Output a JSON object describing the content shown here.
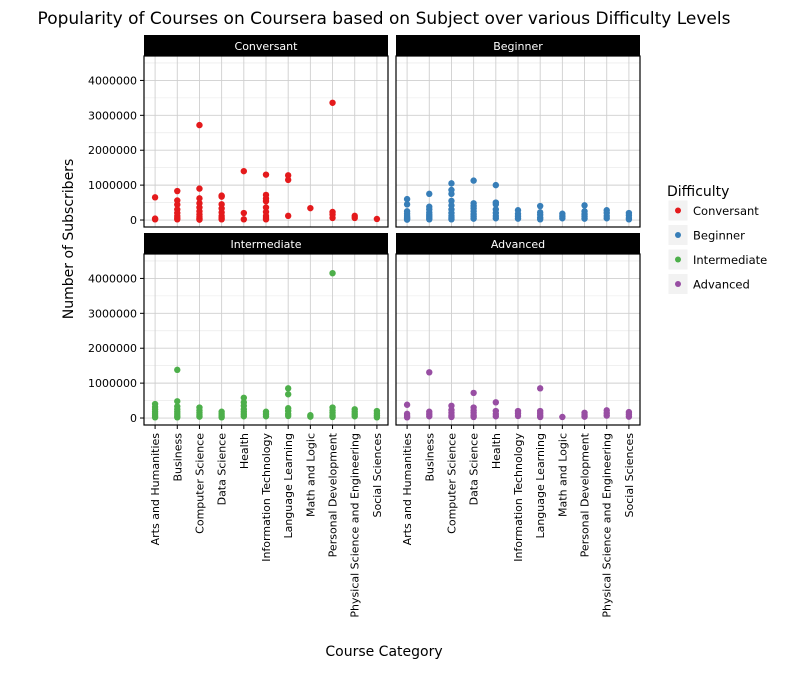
{
  "chart_data": {
    "type": "scatter",
    "title": "Popularity of Courses on Coursera based on Subject over various Difficulty Levels",
    "xlabel": "Course Category",
    "ylabel": "Number of Subscribers",
    "ylim": [
      -200000,
      4700000
    ],
    "yticks": [
      0,
      1000000,
      2000000,
      3000000,
      4000000
    ],
    "ytick_labels": [
      "0",
      "1000000",
      "2000000",
      "3000000",
      "4000000"
    ],
    "grid": true,
    "legend": {
      "title": "Difficulty",
      "placement": "right",
      "entries": [
        {
          "label": "Conversant",
          "color": "#e41a1c"
        },
        {
          "label": "Beginner",
          "color": "#377eb8"
        },
        {
          "label": "Intermediate",
          "color": "#4daf4a"
        },
        {
          "label": "Advanced",
          "color": "#984ea3"
        }
      ]
    },
    "categories": [
      "Arts and Humanities",
      "Business",
      "Computer Science",
      "Data Science",
      "Health",
      "Information Technology",
      "Language Learning",
      "Math and Logic",
      "Personal Development",
      "Physical Science and Engineering",
      "Social Sciences"
    ],
    "panels": [
      {
        "name": "Conversant",
        "color": "#e41a1c",
        "points": [
          [
            0,
            650000
          ],
          [
            0,
            40000
          ],
          [
            0,
            20000
          ],
          [
            1,
            830000
          ],
          [
            1,
            560000
          ],
          [
            1,
            440000
          ],
          [
            1,
            300000
          ],
          [
            1,
            200000
          ],
          [
            1,
            120000
          ],
          [
            1,
            60000
          ],
          [
            1,
            20000
          ],
          [
            2,
            2720000
          ],
          [
            2,
            900000
          ],
          [
            2,
            620000
          ],
          [
            2,
            480000
          ],
          [
            2,
            360000
          ],
          [
            2,
            250000
          ],
          [
            2,
            160000
          ],
          [
            2,
            90000
          ],
          [
            2,
            40000
          ],
          [
            2,
            10000
          ],
          [
            3,
            700000
          ],
          [
            3,
            670000
          ],
          [
            3,
            450000
          ],
          [
            3,
            330000
          ],
          [
            3,
            220000
          ],
          [
            3,
            120000
          ],
          [
            3,
            60000
          ],
          [
            3,
            20000
          ],
          [
            4,
            1400000
          ],
          [
            4,
            200000
          ],
          [
            4,
            20000
          ],
          [
            5,
            1300000
          ],
          [
            5,
            720000
          ],
          [
            5,
            620000
          ],
          [
            5,
            540000
          ],
          [
            5,
            360000
          ],
          [
            5,
            230000
          ],
          [
            5,
            120000
          ],
          [
            5,
            60000
          ],
          [
            5,
            20000
          ],
          [
            6,
            1280000
          ],
          [
            6,
            1150000
          ],
          [
            6,
            120000
          ],
          [
            7,
            340000
          ],
          [
            8,
            3360000
          ],
          [
            8,
            230000
          ],
          [
            8,
            160000
          ],
          [
            8,
            60000
          ],
          [
            9,
            120000
          ],
          [
            9,
            60000
          ],
          [
            10,
            30000
          ]
        ]
      },
      {
        "name": "Beginner",
        "color": "#377eb8",
        "points": [
          [
            0,
            600000
          ],
          [
            0,
            450000
          ],
          [
            0,
            250000
          ],
          [
            0,
            180000
          ],
          [
            0,
            120000
          ],
          [
            0,
            80000
          ],
          [
            0,
            40000
          ],
          [
            0,
            10000
          ],
          [
            1,
            750000
          ],
          [
            1,
            380000
          ],
          [
            1,
            300000
          ],
          [
            1,
            220000
          ],
          [
            1,
            160000
          ],
          [
            1,
            110000
          ],
          [
            1,
            60000
          ],
          [
            1,
            20000
          ],
          [
            2,
            1050000
          ],
          [
            2,
            860000
          ],
          [
            2,
            750000
          ],
          [
            2,
            550000
          ],
          [
            2,
            420000
          ],
          [
            2,
            300000
          ],
          [
            2,
            200000
          ],
          [
            2,
            120000
          ],
          [
            2,
            60000
          ],
          [
            2,
            20000
          ],
          [
            3,
            1130000
          ],
          [
            3,
            480000
          ],
          [
            3,
            400000
          ],
          [
            3,
            330000
          ],
          [
            3,
            250000
          ],
          [
            3,
            170000
          ],
          [
            3,
            100000
          ],
          [
            3,
            40000
          ],
          [
            4,
            1000000
          ],
          [
            4,
            500000
          ],
          [
            4,
            450000
          ],
          [
            4,
            300000
          ],
          [
            4,
            200000
          ],
          [
            4,
            120000
          ],
          [
            4,
            50000
          ],
          [
            5,
            280000
          ],
          [
            5,
            180000
          ],
          [
            5,
            100000
          ],
          [
            5,
            40000
          ],
          [
            6,
            400000
          ],
          [
            6,
            220000
          ],
          [
            6,
            150000
          ],
          [
            6,
            70000
          ],
          [
            6,
            20000
          ],
          [
            7,
            180000
          ],
          [
            7,
            110000
          ],
          [
            7,
            50000
          ],
          [
            8,
            420000
          ],
          [
            8,
            250000
          ],
          [
            8,
            170000
          ],
          [
            8,
            100000
          ],
          [
            8,
            40000
          ],
          [
            9,
            280000
          ],
          [
            9,
            200000
          ],
          [
            9,
            120000
          ],
          [
            9,
            50000
          ],
          [
            10,
            200000
          ],
          [
            10,
            130000
          ],
          [
            10,
            60000
          ],
          [
            10,
            20000
          ]
        ]
      },
      {
        "name": "Intermediate",
        "color": "#4daf4a",
        "points": [
          [
            0,
            400000
          ],
          [
            0,
            320000
          ],
          [
            0,
            250000
          ],
          [
            0,
            180000
          ],
          [
            0,
            120000
          ],
          [
            0,
            60000
          ],
          [
            0,
            20000
          ],
          [
            1,
            1380000
          ],
          [
            1,
            480000
          ],
          [
            1,
            330000
          ],
          [
            1,
            250000
          ],
          [
            1,
            180000
          ],
          [
            1,
            120000
          ],
          [
            1,
            60000
          ],
          [
            1,
            20000
          ],
          [
            2,
            300000
          ],
          [
            2,
            220000
          ],
          [
            2,
            150000
          ],
          [
            2,
            90000
          ],
          [
            2,
            40000
          ],
          [
            3,
            180000
          ],
          [
            3,
            120000
          ],
          [
            3,
            60000
          ],
          [
            3,
            20000
          ],
          [
            4,
            580000
          ],
          [
            4,
            450000
          ],
          [
            4,
            350000
          ],
          [
            4,
            250000
          ],
          [
            4,
            180000
          ],
          [
            4,
            110000
          ],
          [
            4,
            50000
          ],
          [
            5,
            180000
          ],
          [
            5,
            110000
          ],
          [
            5,
            50000
          ],
          [
            6,
            850000
          ],
          [
            6,
            680000
          ],
          [
            6,
            280000
          ],
          [
            6,
            200000
          ],
          [
            6,
            120000
          ],
          [
            6,
            60000
          ],
          [
            7,
            80000
          ],
          [
            7,
            40000
          ],
          [
            8,
            4150000
          ],
          [
            8,
            300000
          ],
          [
            8,
            220000
          ],
          [
            8,
            150000
          ],
          [
            8,
            80000
          ],
          [
            8,
            30000
          ],
          [
            9,
            250000
          ],
          [
            9,
            180000
          ],
          [
            9,
            110000
          ],
          [
            9,
            50000
          ],
          [
            10,
            200000
          ],
          [
            10,
            130000
          ],
          [
            10,
            70000
          ],
          [
            10,
            20000
          ]
        ]
      },
      {
        "name": "Advanced",
        "color": "#984ea3",
        "points": [
          [
            0,
            380000
          ],
          [
            0,
            120000
          ],
          [
            0,
            60000
          ],
          [
            0,
            20000
          ],
          [
            1,
            1310000
          ],
          [
            1,
            180000
          ],
          [
            1,
            110000
          ],
          [
            1,
            50000
          ],
          [
            2,
            350000
          ],
          [
            2,
            230000
          ],
          [
            2,
            150000
          ],
          [
            2,
            80000
          ],
          [
            2,
            30000
          ],
          [
            3,
            720000
          ],
          [
            3,
            300000
          ],
          [
            3,
            220000
          ],
          [
            3,
            150000
          ],
          [
            3,
            80000
          ],
          [
            3,
            30000
          ],
          [
            4,
            450000
          ],
          [
            4,
            200000
          ],
          [
            4,
            120000
          ],
          [
            4,
            50000
          ],
          [
            5,
            200000
          ],
          [
            5,
            130000
          ],
          [
            5,
            60000
          ],
          [
            6,
            850000
          ],
          [
            6,
            200000
          ],
          [
            6,
            140000
          ],
          [
            6,
            80000
          ],
          [
            6,
            30000
          ],
          [
            7,
            30000
          ],
          [
            8,
            150000
          ],
          [
            8,
            90000
          ],
          [
            8,
            40000
          ],
          [
            9,
            220000
          ],
          [
            9,
            140000
          ],
          [
            9,
            70000
          ],
          [
            10,
            170000
          ],
          [
            10,
            100000
          ],
          [
            10,
            40000
          ]
        ]
      }
    ]
  }
}
